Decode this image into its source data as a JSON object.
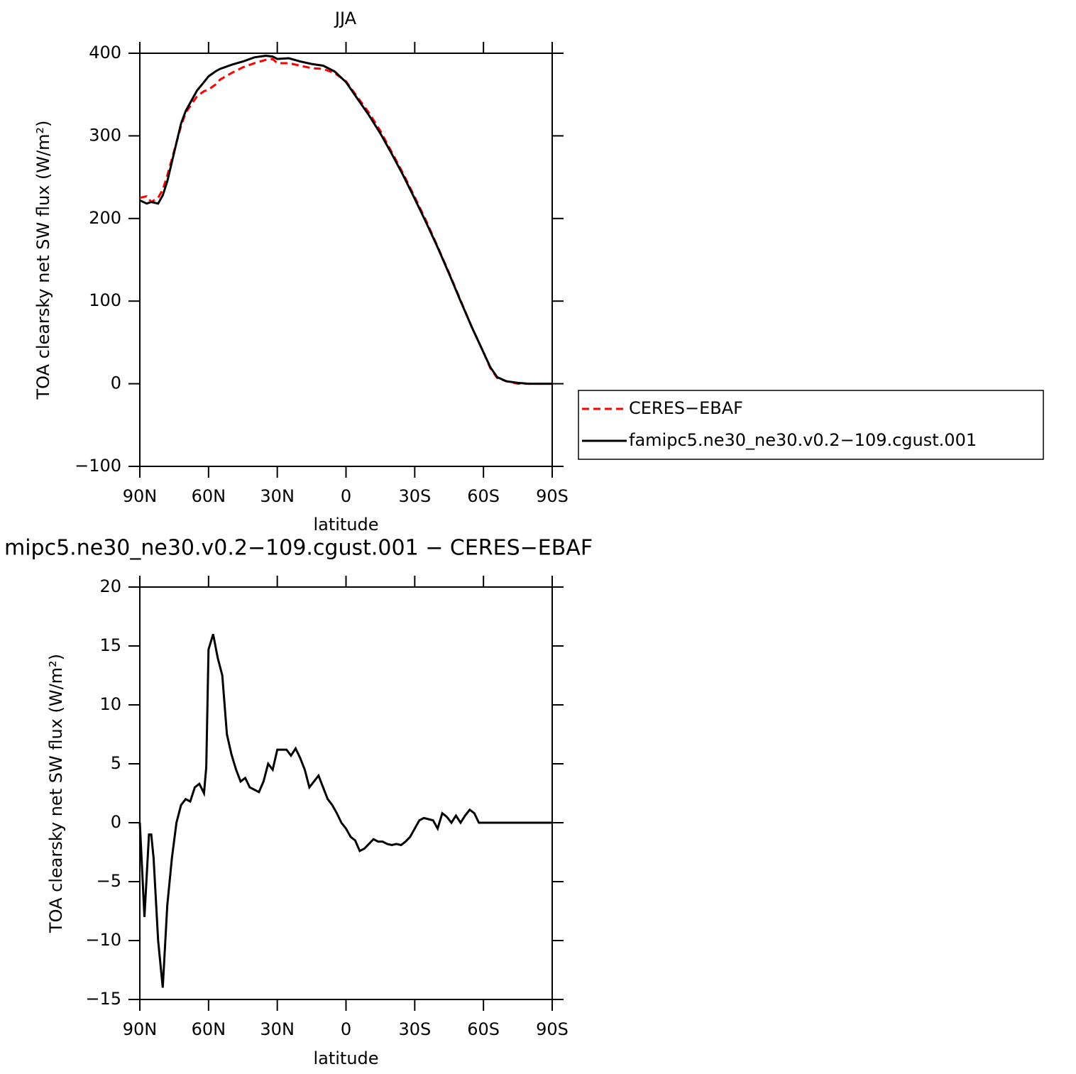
{
  "chart_data": [
    {
      "type": "line",
      "title": "JJA",
      "xlabel": "latitude",
      "ylabel": "TOA clearsky net SW flux (W/m²)",
      "x": [
        90,
        87,
        85,
        82,
        80,
        78,
        75,
        72,
        70,
        67,
        65,
        62,
        60,
        57,
        55,
        50,
        45,
        40,
        35,
        32,
        30,
        25,
        20,
        15,
        10,
        5,
        0,
        -5,
        -10,
        -15,
        -20,
        -25,
        -30,
        -35,
        -40,
        -45,
        -50,
        -55,
        -60,
        -63,
        -66,
        -70,
        -75,
        -80,
        -90
      ],
      "xlim": [
        90,
        -90
      ],
      "xticks": [
        {
          "value": 90,
          "label": "90N"
        },
        {
          "value": 60,
          "label": "60N"
        },
        {
          "value": 30,
          "label": "30N"
        },
        0,
        {
          "value": -30,
          "label": "30S"
        },
        {
          "value": -60,
          "label": "60S"
        },
        {
          "value": -90,
          "label": "90S"
        }
      ],
      "ylim": [
        -100,
        400
      ],
      "yticks": [
        {
          "value": -100,
          "label": "−100"
        },
        0,
        100,
        200,
        300,
        400
      ],
      "series": [
        {
          "name": "CERES−EBAF",
          "color": "#ff0000",
          "dash": true,
          "values": [
            225,
            227,
            220,
            225,
            235,
            252,
            282,
            312,
            328,
            340,
            348,
            354,
            356,
            362,
            368,
            376,
            383,
            388,
            392,
            393,
            388,
            388,
            385,
            382,
            381,
            376,
            366,
            347,
            328,
            306,
            280,
            254,
            226,
            197,
            166,
            134,
            101,
            68,
            38,
            19,
            7,
            3,
            0,
            0,
            0
          ]
        },
        {
          "name": "famipc5.ne30_ne30.v0.2−109.cgust.001",
          "color": "#000000",
          "dash": false,
          "values": [
            222,
            218,
            220,
            218,
            228,
            245,
            280,
            315,
            330,
            345,
            355,
            365,
            372,
            378,
            381,
            386,
            390,
            395,
            397,
            396,
            393,
            394,
            390,
            387,
            385,
            378,
            365,
            345,
            325,
            303,
            278,
            252,
            224,
            195,
            165,
            133,
            100,
            68,
            38,
            20,
            8,
            3,
            1,
            0,
            0
          ]
        }
      ]
    },
    {
      "type": "line",
      "title": "mipc5.ne30_ne30.v0.2−109.cgust.001 − CERES−EBAF",
      "xlabel": "latitude",
      "ylabel": "TOA clearsky net SW flux (W/m²)",
      "x": [
        90,
        88,
        86,
        85,
        84,
        82,
        80,
        78,
        76,
        74,
        72,
        70,
        68,
        66,
        64,
        62,
        61,
        60,
        58,
        56,
        54,
        52,
        50,
        48,
        46,
        44,
        42,
        40,
        38,
        36,
        34,
        32,
        30,
        28,
        26,
        24,
        22,
        20,
        18,
        16,
        14,
        12,
        10,
        8,
        6,
        4,
        2,
        0,
        -2,
        -4,
        -6,
        -8,
        -10,
        -12,
        -14,
        -16,
        -18,
        -20,
        -22,
        -24,
        -26,
        -28,
        -30,
        -32,
        -34,
        -36,
        -38,
        -40,
        -42,
        -44,
        -46,
        -48,
        -50,
        -52,
        -54,
        -56,
        -58,
        -60,
        -90
      ],
      "xlim": [
        90,
        -90
      ],
      "xticks": [
        {
          "value": 90,
          "label": "90N"
        },
        {
          "value": 60,
          "label": "60N"
        },
        {
          "value": 30,
          "label": "30N"
        },
        0,
        {
          "value": -30,
          "label": "30S"
        },
        {
          "value": -60,
          "label": "60S"
        },
        {
          "value": -90,
          "label": "90S"
        }
      ],
      "ylim": [
        -15,
        20
      ],
      "yticks": [
        {
          "value": -15,
          "label": "−15"
        },
        {
          "value": -10,
          "label": "−10"
        },
        {
          "value": -5,
          "label": "−5"
        },
        0,
        5,
        10,
        15,
        20
      ],
      "series": [
        {
          "color": "#000000",
          "dash": false,
          "values": [
            0,
            -8,
            -1,
            -1,
            -3,
            -10,
            -14,
            -7,
            -3,
            0,
            1.5,
            2,
            1.8,
            3,
            3.3,
            2.5,
            4.7,
            14.7,
            16,
            14,
            12.5,
            7.5,
            5.8,
            4.5,
            3.5,
            3.8,
            3,
            2.8,
            2.6,
            3.5,
            5,
            4.5,
            6.2,
            6.2,
            6.2,
            5.7,
            6.3,
            5.5,
            4.5,
            3,
            3.5,
            4,
            3,
            2,
            1.5,
            0.8,
            0,
            -0.5,
            -1.2,
            -1.5,
            -2.4,
            -2.2,
            -1.8,
            -1.4,
            -1.6,
            -1.6,
            -1.8,
            -1.9,
            -1.8,
            -1.9,
            -1.6,
            -1.2,
            -0.5,
            0.2,
            0.4,
            0.3,
            0.2,
            -0.5,
            0.8,
            0.5,
            0,
            0.6,
            0,
            0.6,
            1.1,
            0.8,
            0,
            0,
            0
          ]
        }
      ]
    }
  ]
}
